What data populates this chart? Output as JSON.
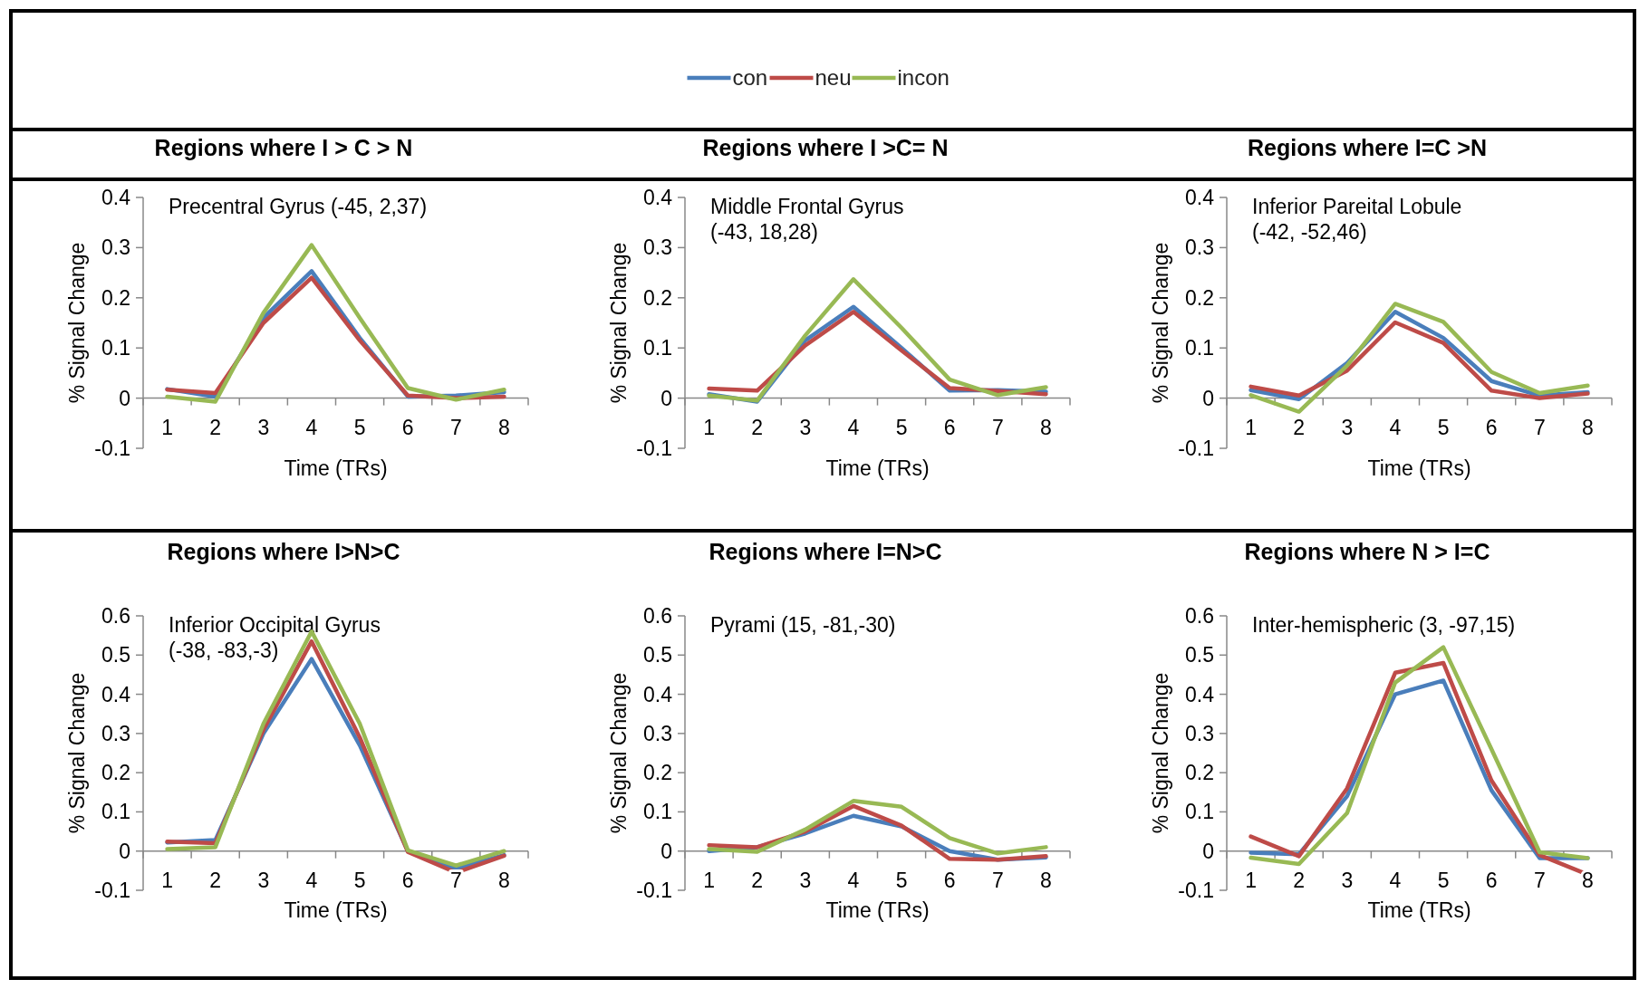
{
  "chart_data": [
    {
      "type": "line",
      "title": "Regions where I > C > N",
      "subtitle": "Precentral Gyrus (-45, 2,37)",
      "xlabel": "Time (TRs)",
      "ylabel": "% Signal Change",
      "categories": [
        "1",
        "2",
        "3",
        "4",
        "5",
        "6",
        "7",
        "8"
      ],
      "ylim": [
        -0.1,
        0.4
      ],
      "yticks": [
        -0.1,
        0,
        0.1,
        0.2,
        0.3,
        0.4
      ],
      "legend": "top",
      "series": [
        {
          "name": "con",
          "color": "#4a7ebb",
          "values": [
            0.018,
            0.003,
            0.16,
            0.253,
            0.12,
            0.003,
            0.005,
            0.012
          ]
        },
        {
          "name": "neu",
          "color": "#be4b48",
          "values": [
            0.017,
            0.01,
            0.15,
            0.24,
            0.115,
            0.005,
            0.0,
            0.003
          ]
        },
        {
          "name": "incon",
          "color": "#98b954",
          "values": [
            0.003,
            -0.007,
            0.17,
            0.305,
            0.16,
            0.02,
            -0.003,
            0.017
          ]
        }
      ]
    },
    {
      "type": "line",
      "title": "Regions where I >C= N",
      "subtitle": "Middle Frontal Gyrus (-43, 18,28)",
      "xlabel": "Time (TRs)",
      "ylabel": "% Signal Change",
      "categories": [
        "1",
        "2",
        "3",
        "4",
        "5",
        "6",
        "7",
        "8"
      ],
      "ylim": [
        -0.1,
        0.4
      ],
      "yticks": [
        -0.1,
        0,
        0.1,
        0.2,
        0.3,
        0.4
      ],
      "series": [
        {
          "color": "#4a7ebb",
          "values": [
            0.008,
            -0.007,
            0.115,
            0.182,
            0.1,
            0.015,
            0.016,
            0.013
          ]
        },
        {
          "color": "#be4b48",
          "values": [
            0.019,
            0.015,
            0.105,
            0.172,
            0.095,
            0.02,
            0.014,
            0.008
          ]
        },
        {
          "color": "#98b954",
          "values": [
            0.005,
            -0.005,
            0.125,
            0.237,
            0.14,
            0.037,
            0.006,
            0.022
          ]
        }
      ]
    },
    {
      "type": "line",
      "title": "Regions where I=C >N",
      "subtitle": "Inferior Pareital Lobule (-42, -52,46)",
      "xlabel": "Time (TRs)",
      "ylabel": "% Signal Change",
      "categories": [
        "1",
        "2",
        "3",
        "4",
        "5",
        "6",
        "7",
        "8"
      ],
      "ylim": [
        -0.1,
        0.4
      ],
      "yticks": [
        -0.1,
        0,
        0.1,
        0.2,
        0.3,
        0.4
      ],
      "series": [
        {
          "color": "#4a7ebb",
          "values": [
            0.016,
            -0.002,
            0.07,
            0.172,
            0.12,
            0.034,
            0.005,
            0.012
          ]
        },
        {
          "color": "#be4b48",
          "values": [
            0.023,
            0.005,
            0.055,
            0.151,
            0.11,
            0.015,
            0.0,
            0.009
          ]
        },
        {
          "color": "#98b954",
          "values": [
            0.006,
            -0.027,
            0.065,
            0.188,
            0.152,
            0.052,
            0.01,
            0.025
          ]
        }
      ]
    },
    {
      "type": "line",
      "title": "Regions where I>N>C",
      "subtitle": "Inferior Occipital Gyrus (-38, -83,-3)",
      "xlabel": "Time (TRs)",
      "ylabel": "% Signal Change",
      "categories": [
        "1",
        "2",
        "3",
        "4",
        "5",
        "6",
        "7",
        "8"
      ],
      "ylim": [
        -0.1,
        0.6
      ],
      "yticks": [
        -0.1,
        0,
        0.1,
        0.2,
        0.3,
        0.4,
        0.5,
        0.6
      ],
      "series": [
        {
          "color": "#4a7ebb",
          "values": [
            0.022,
            0.028,
            0.3,
            0.49,
            0.27,
            0.0,
            -0.045,
            -0.01
          ]
        },
        {
          "color": "#be4b48",
          "values": [
            0.024,
            0.02,
            0.31,
            0.535,
            0.29,
            -0.002,
            -0.055,
            -0.012
          ]
        },
        {
          "color": "#98b954",
          "values": [
            0.005,
            0.01,
            0.325,
            0.56,
            0.325,
            0.002,
            -0.037,
            0.0
          ]
        }
      ]
    },
    {
      "type": "line",
      "title": "Regions where I=N>C",
      "subtitle": "Pyrami (15, -81,-30)",
      "xlabel": "Time (TRs)",
      "ylabel": "% Signal Change",
      "categories": [
        "1",
        "2",
        "3",
        "4",
        "5",
        "6",
        "7",
        "8"
      ],
      "ylim": [
        -0.1,
        0.6
      ],
      "yticks": [
        -0.1,
        0,
        0.1,
        0.2,
        0.3,
        0.4,
        0.5,
        0.6
      ],
      "series": [
        {
          "color": "#4a7ebb",
          "values": [
            0.0,
            0.01,
            0.045,
            0.09,
            0.063,
            0.0,
            -0.022,
            -0.016
          ]
        },
        {
          "color": "#be4b48",
          "values": [
            0.015,
            0.01,
            0.05,
            0.115,
            0.065,
            -0.02,
            -0.022,
            -0.013
          ]
        },
        {
          "color": "#98b954",
          "values": [
            0.005,
            -0.002,
            0.055,
            0.128,
            0.113,
            0.033,
            -0.006,
            0.01
          ]
        }
      ]
    },
    {
      "type": "line",
      "title": "Regions where N > I=C",
      "subtitle": "Inter-hemispheric (3, -97,15)",
      "xlabel": "Time (TRs)",
      "ylabel": "% Signal Change",
      "categories": [
        "1",
        "2",
        "3",
        "4",
        "5",
        "6",
        "7",
        "8"
      ],
      "ylim": [
        -0.1,
        0.6
      ],
      "yticks": [
        -0.1,
        0,
        0.1,
        0.2,
        0.3,
        0.4,
        0.5,
        0.6
      ],
      "series": [
        {
          "color": "#4a7ebb",
          "values": [
            -0.004,
            -0.008,
            0.14,
            0.4,
            0.435,
            0.155,
            -0.018,
            -0.018
          ]
        },
        {
          "color": "#be4b48",
          "values": [
            0.037,
            -0.013,
            0.16,
            0.455,
            0.48,
            0.18,
            -0.01,
            -0.06
          ]
        },
        {
          "color": "#98b954",
          "values": [
            -0.017,
            -0.033,
            0.097,
            0.43,
            0.52,
            0.26,
            -0.003,
            -0.018
          ]
        }
      ]
    }
  ]
}
